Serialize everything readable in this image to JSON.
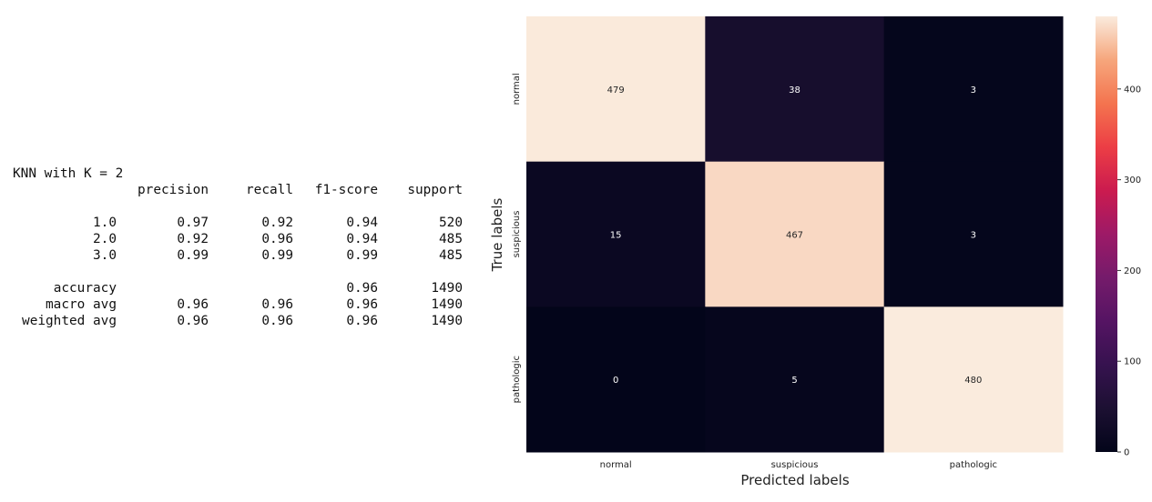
{
  "report": {
    "title_prefix": "KNN with K = ",
    "k_value": "2",
    "header": [
      "",
      "precision",
      "recall",
      "f1-score",
      "support"
    ],
    "rows": [
      [
        "1.0",
        "0.97",
        "0.92",
        "0.94",
        "520"
      ],
      [
        "2.0",
        "0.92",
        "0.96",
        "0.94",
        "485"
      ],
      [
        "3.0",
        "0.99",
        "0.99",
        "0.99",
        "485"
      ]
    ],
    "summary": [
      [
        "accuracy",
        "",
        "",
        "0.96",
        "1490"
      ],
      [
        "macro avg",
        "0.96",
        "0.96",
        "0.96",
        "1490"
      ],
      [
        "weighted avg",
        "0.96",
        "0.96",
        "0.96",
        "1490"
      ]
    ]
  },
  "chart_data": {
    "type": "heatmap",
    "title": "",
    "xlabel": "Predicted labels",
    "ylabel": "True labels",
    "x_categories": [
      "normal",
      "suspicious",
      "pathologic"
    ],
    "y_categories": [
      "normal",
      "suspicious",
      "pathologic"
    ],
    "values": [
      [
        479,
        38,
        3
      ],
      [
        15,
        467,
        3
      ],
      [
        0,
        5,
        480
      ]
    ],
    "colorbar": {
      "min": 0,
      "max": 480,
      "ticks": [
        0,
        100,
        200,
        300,
        400
      ],
      "colormap": "rocket"
    }
  }
}
